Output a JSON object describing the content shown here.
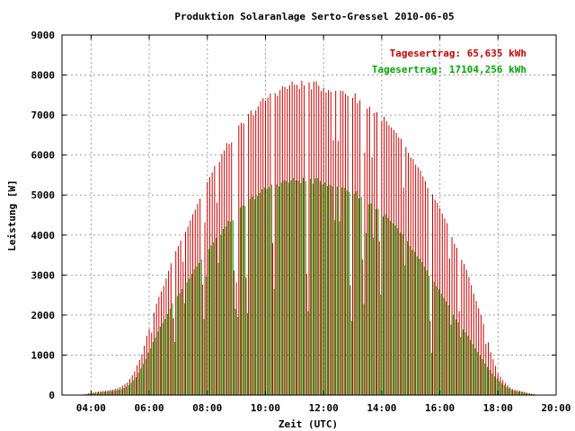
{
  "chart_data": {
    "type": "bar",
    "title": "Produktion Solaranlage Serto-Gressel 2010-06-05",
    "xlabel": "Zeit (UTC)",
    "ylabel": "Leistung [W]",
    "xlim": [
      "03:00",
      "20:00"
    ],
    "ylim": [
      0,
      9000
    ],
    "x_ticks": [
      "04:00",
      "06:00",
      "08:00",
      "10:00",
      "12:00",
      "14:00",
      "16:00",
      "18:00",
      "20:00"
    ],
    "y_ticks": [
      "0",
      "1000",
      "2000",
      "3000",
      "4000",
      "5000",
      "6000",
      "7000",
      "8000",
      "9000"
    ],
    "grid": true,
    "legend_position": "top-right",
    "annotations": [
      {
        "text": "Tagesertrag: 65,635 kWh",
        "color": "#cc0000"
      },
      {
        "text": "Tagesertrag: 17104,256 kWh",
        "color": "#00aa00"
      }
    ],
    "series": [
      {
        "color": "#cc0000",
        "x": [
          "03:45",
          "04:00",
          "04:15",
          "04:30",
          "04:45",
          "05:00",
          "05:15",
          "05:30",
          "05:45",
          "06:00",
          "06:15",
          "06:30",
          "06:45",
          "07:00",
          "07:15",
          "07:30",
          "07:45",
          "08:00",
          "08:30",
          "09:00",
          "09:30",
          "10:00",
          "10:30",
          "11:00",
          "11:30",
          "12:00",
          "12:30",
          "13:00",
          "13:30",
          "14:00",
          "14:30",
          "15:00",
          "15:30",
          "16:00",
          "16:30",
          "17:00",
          "17:15",
          "17:30",
          "17:45",
          "18:00",
          "18:15",
          "18:30",
          "18:45",
          "19:00",
          "19:15"
        ],
        "values": [
          20,
          60,
          90,
          110,
          140,
          200,
          320,
          600,
          1050,
          1700,
          2300,
          2800,
          3300,
          3800,
          4200,
          4600,
          5000,
          5400,
          6100,
          6700,
          7150,
          7500,
          7750,
          7880,
          7880,
          7800,
          7750,
          7600,
          7350,
          7050,
          6600,
          6050,
          5400,
          4700,
          3900,
          3000,
          2400,
          1800,
          1100,
          550,
          300,
          150,
          110,
          60,
          20
        ]
      },
      {
        "color": "#00aa00",
        "x": [
          "03:45",
          "04:00",
          "04:15",
          "04:30",
          "04:45",
          "05:00",
          "05:15",
          "05:30",
          "05:45",
          "06:00",
          "06:15",
          "06:30",
          "06:45",
          "07:00",
          "07:15",
          "07:30",
          "07:45",
          "08:00",
          "08:30",
          "09:00",
          "09:30",
          "10:00",
          "10:30",
          "11:00",
          "11:30",
          "12:00",
          "12:30",
          "13:00",
          "13:30",
          "14:00",
          "14:30",
          "15:00",
          "15:30",
          "16:00",
          "16:30",
          "17:00",
          "17:15",
          "17:30",
          "17:45",
          "18:00",
          "18:15",
          "18:30",
          "18:45",
          "19:00",
          "19:15"
        ],
        "values": [
          15,
          45,
          70,
          90,
          110,
          150,
          250,
          450,
          800,
          1200,
          1600,
          1950,
          2300,
          2600,
          2900,
          3200,
          3450,
          3700,
          4200,
          4650,
          5000,
          5250,
          5400,
          5450,
          5450,
          5400,
          5300,
          5150,
          4900,
          4600,
          4200,
          3700,
          3150,
          2550,
          1950,
          1400,
          1100,
          800,
          550,
          350,
          200,
          110,
          80,
          40,
          15
        ]
      }
    ]
  }
}
